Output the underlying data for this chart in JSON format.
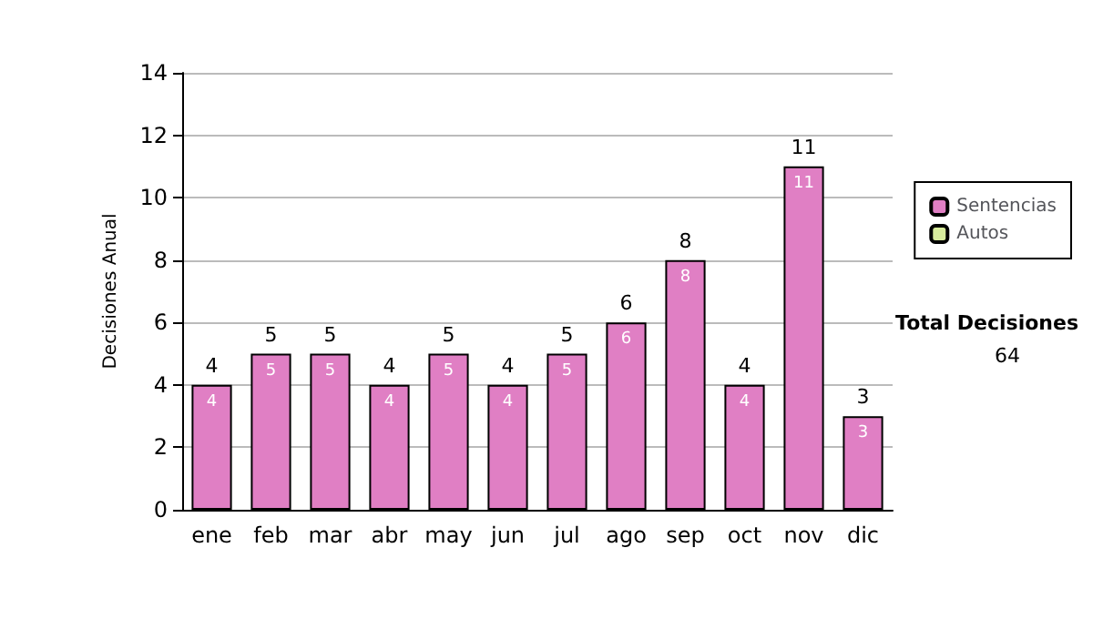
{
  "chart_data": {
    "type": "bar",
    "ylabel": "Decisiones Anual",
    "categories": [
      "ene",
      "feb",
      "mar",
      "abr",
      "may",
      "jun",
      "jul",
      "ago",
      "sep",
      "oct",
      "nov",
      "dic"
    ],
    "stacked": true,
    "series": [
      {
        "name": "Sentencias",
        "color": "#e07fc4",
        "values": [
          4,
          5,
          5,
          4,
          5,
          4,
          5,
          6,
          8,
          4,
          11,
          3
        ],
        "value_labels": [
          "4",
          "5",
          "5",
          "4",
          "5",
          "4",
          "5",
          "6",
          "8",
          "4",
          "11",
          "3"
        ]
      },
      {
        "name": "Autos",
        "color": "#d8ec9c",
        "values": [
          0,
          0,
          0,
          0,
          0,
          0,
          0,
          0,
          0,
          0,
          0,
          0
        ]
      }
    ],
    "totals": [
      "4",
      "5",
      "5",
      "4",
      "5",
      "4",
      "5",
      "6",
      "8",
      "4",
      "11",
      "3"
    ],
    "ylim": [
      0,
      14
    ],
    "yticks": [
      0,
      2,
      4,
      6,
      8,
      10,
      12,
      14
    ],
    "grid": "y",
    "legend": "right",
    "annotations": [
      "Total Decisiones",
      "64"
    ]
  }
}
